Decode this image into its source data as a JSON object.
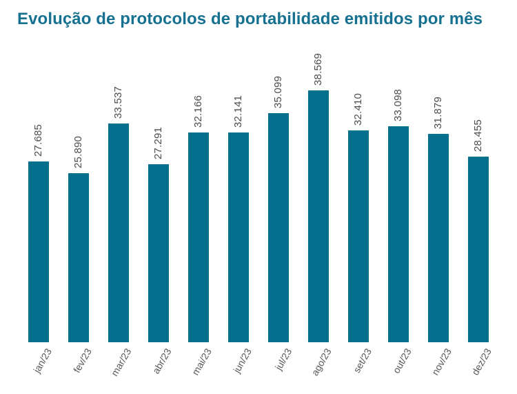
{
  "page": {
    "background": "#ffffff"
  },
  "chart_data": {
    "type": "bar",
    "title": "Evolução de protocolos de portabilidade emitidos por mês",
    "categories": [
      "jan/23",
      "fev/23",
      "mar/23",
      "abr/23",
      "mai/23",
      "jun/23",
      "jul/23",
      "ago/23",
      "set/23",
      "out/23",
      "nov/23",
      "dez/23"
    ],
    "values": [
      27685,
      25890,
      33537,
      27291,
      32166,
      32141,
      35099,
      38569,
      32410,
      33098,
      31879,
      28455
    ],
    "value_labels": [
      "27.685",
      "25.890",
      "33.537",
      "27.291",
      "32.166",
      "32.141",
      "35.099",
      "38.569",
      "32.410",
      "33.098",
      "31.879",
      "28.455"
    ],
    "xlabel": "",
    "ylabel": "",
    "ylim": [
      0,
      38569
    ],
    "grid": false,
    "legend": "none",
    "axes_visible": false,
    "x_tick_rotation_deg": 60,
    "value_label_rotation_deg": 90,
    "colors": {
      "bar": "#05708E",
      "title": "#15718F",
      "value_label": "#4d4d4d",
      "tick_label": "#595959"
    }
  }
}
